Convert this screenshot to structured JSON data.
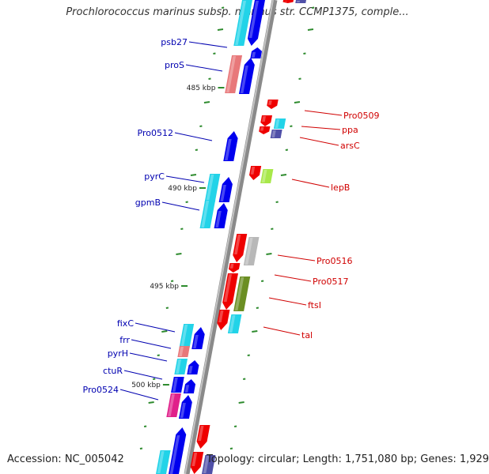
{
  "title": "Prochlorococcus marinus subsp. marinus str. CCMP1375, comple...",
  "footer": {
    "accession": "Accession: NC_005042",
    "topology": "Topology: circular; Length: 1,751,080 bp; Genes: 1,929"
  },
  "colors": {
    "backbone": "#8a8a8a",
    "label_left": "#0000b0",
    "label_right": "#d00000",
    "tick": "#2e8b2e",
    "gene_blue": "#0000ee",
    "gene_red": "#ee0000",
    "cyan": "#22d3e8",
    "salmon": "#e8787a",
    "navy": "#5050a8",
    "lime": "#a8e84a",
    "gray": "#b8b8b8",
    "olive": "#6b8e23",
    "magenta": "#e0208a"
  },
  "scale_labels": [
    "485 kbp",
    "490 kbp",
    "495 kbp",
    "500 kbp"
  ],
  "left_genes": [
    "psb27",
    "proS",
    "Pro0512",
    "pyrC",
    "gpmB",
    "fixC",
    "frr",
    "pyrH",
    "ctuR",
    "Pro0524"
  ],
  "right_genes": [
    "Pro0509",
    "ppa",
    "arsC",
    "lepB",
    "Pro0516",
    "Pro0517",
    "ftsI",
    "tal"
  ]
}
